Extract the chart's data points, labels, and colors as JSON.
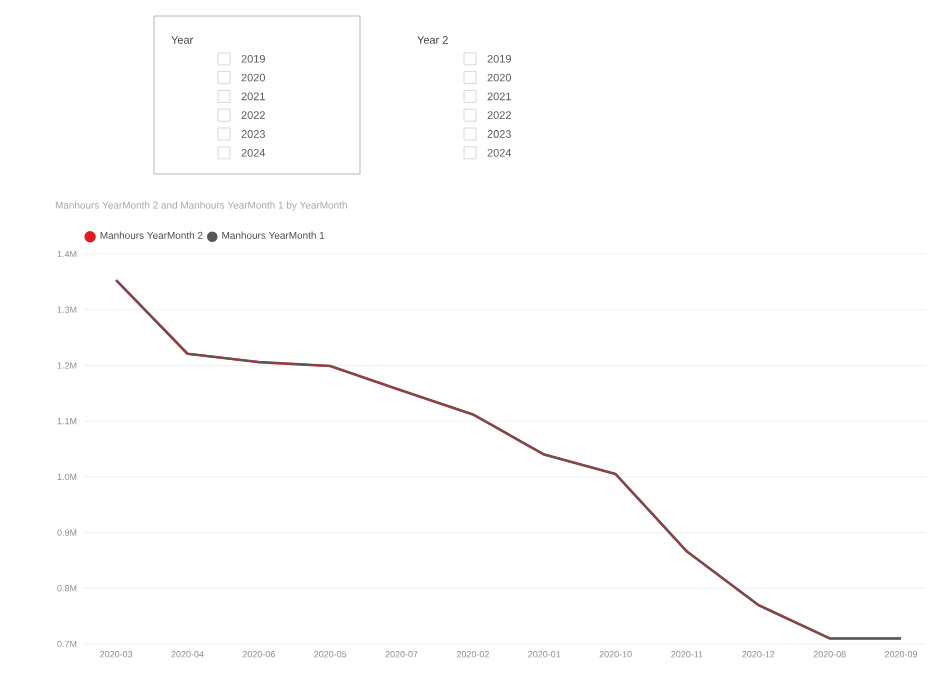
{
  "chart_data": {
    "type": "line",
    "title": "Manhours YearMonth 2 and Manhours YearMonth 1 by YearMonth",
    "categories": [
      "2020-03",
      "2020-04",
      "2020-06",
      "2020-05",
      "2020-07",
      "2020-02",
      "2020-01",
      "2020-10",
      "2020-11",
      "2020-12",
      "2020-08",
      "2020-09"
    ],
    "series": [
      {
        "name": "Manhours YearMonth 2",
        "color": "#e01b22",
        "values": [
          1353000,
          1221000,
          1206000,
          1199000,
          1155000,
          1112000,
          1040000,
          1005000,
          866000,
          770000,
          710000,
          710000
        ]
      },
      {
        "name": "Manhours YearMonth 1",
        "color": "#595959",
        "values": [
          1353000,
          1221000,
          1206000,
          1199000,
          1155000,
          1112000,
          1040000,
          1005000,
          866000,
          770000,
          710000,
          710000
        ]
      }
    ],
    "ylim": [
      700000,
      1400000
    ],
    "yticks": [
      {
        "value": 700000,
        "label": "0.7M"
      },
      {
        "value": 800000,
        "label": "0.8M"
      },
      {
        "value": 900000,
        "label": "0.9M"
      },
      {
        "value": 1000000,
        "label": "1.0M"
      },
      {
        "value": 1100000,
        "label": "1.1M"
      },
      {
        "value": 1200000,
        "label": "1.2M"
      },
      {
        "value": 1300000,
        "label": "1.3M"
      },
      {
        "value": 1400000,
        "label": "1.4M"
      }
    ],
    "grid": "y",
    "legend": "top left",
    "marker": "none",
    "line_style": "solid",
    "annotations": [
      "Year",
      "2019",
      "2020",
      "2021",
      "2022",
      "2023",
      "2024",
      "Year 2",
      "2019",
      "2020",
      "2021",
      "2022",
      "2023",
      "2024"
    ]
  }
}
